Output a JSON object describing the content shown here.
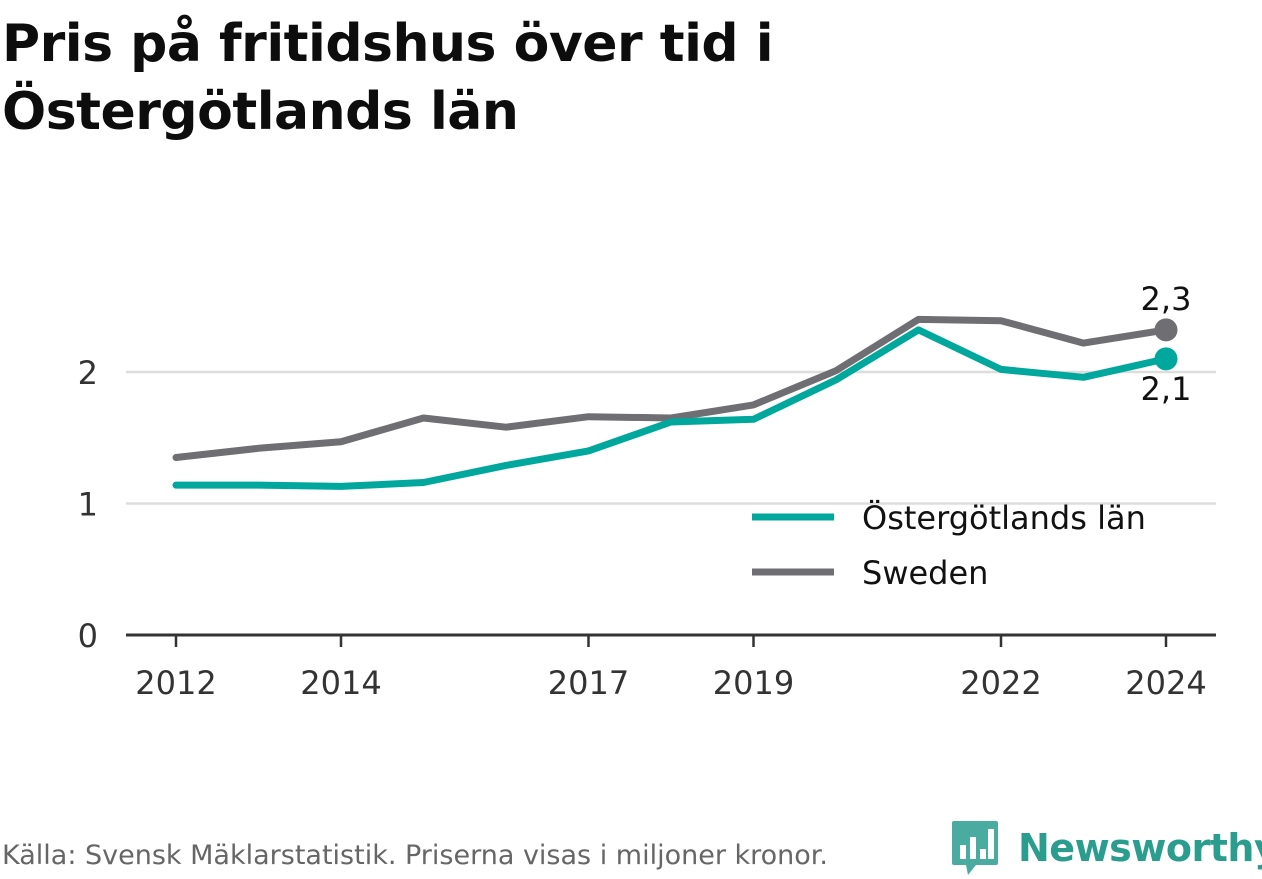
{
  "title": "Pris på fritidshus över tid i Östergötlands län",
  "footer": "Källa: Svensk Mäklarstatistik. Priserna visas i miljoner kronor.",
  "brand": {
    "name": "Newsworthy",
    "icon": "bar-chart-speech-bubble-icon",
    "color": "#2a9d8f"
  },
  "colors": {
    "ostergotland": "#00a79d",
    "sweden": "#6f6e73",
    "grid": "#dddddd",
    "axis": "#333333"
  },
  "chart_data": {
    "type": "line",
    "x": [
      2012,
      2013,
      2014,
      2015,
      2016,
      2017,
      2018,
      2019,
      2020,
      2021,
      2022,
      2023,
      2024
    ],
    "x_ticks": [
      2012,
      2014,
      2017,
      2019,
      2022,
      2024
    ],
    "y_ticks": [
      0,
      1,
      2
    ],
    "ylim": [
      0,
      2.6
    ],
    "grid": "horizontal",
    "legend": "right, inside plot",
    "series": [
      {
        "name": "Östergötlands län",
        "color": "#00a79d",
        "values": [
          1.14,
          1.14,
          1.13,
          1.16,
          1.29,
          1.4,
          1.62,
          1.64,
          1.94,
          2.32,
          2.02,
          1.96,
          2.1
        ],
        "end_label": "2,1"
      },
      {
        "name": "Sweden",
        "color": "#6f6e73",
        "values": [
          1.35,
          1.42,
          1.47,
          1.65,
          1.58,
          1.66,
          1.65,
          1.75,
          2.01,
          2.4,
          2.39,
          2.22,
          2.32
        ],
        "end_label": "2,3"
      }
    ]
  }
}
